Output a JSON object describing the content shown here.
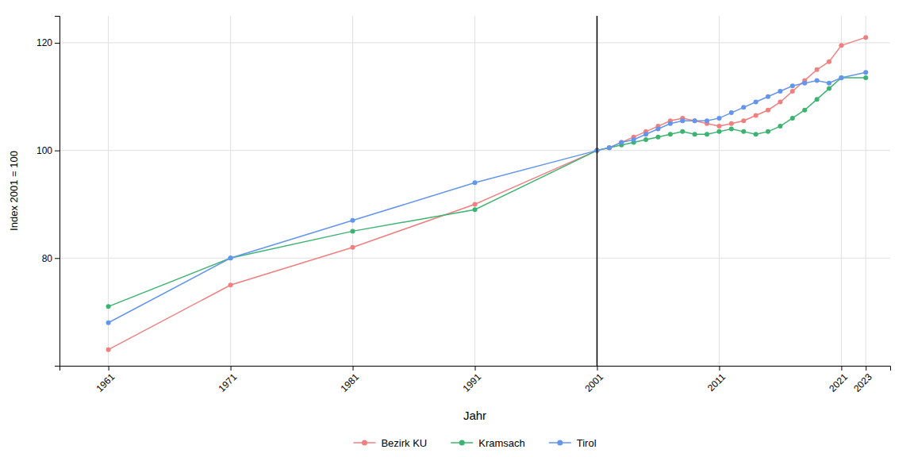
{
  "chart_data": {
    "type": "line",
    "xlabel": "Jahr",
    "ylabel": "Index 2001 = 100",
    "x": [
      1961,
      1971,
      1981,
      1991,
      2001,
      2002,
      2003,
      2004,
      2005,
      2006,
      2007,
      2008,
      2009,
      2010,
      2011,
      2012,
      2013,
      2014,
      2015,
      2016,
      2017,
      2018,
      2019,
      2020,
      2021,
      2023
    ],
    "series": [
      {
        "name": "Bezirk KU",
        "color": "#f08080",
        "marker": "circle",
        "values": [
          63.0,
          75.0,
          82.0,
          90.0,
          100.0,
          100.5,
          101.5,
          102.5,
          103.5,
          104.5,
          105.5,
          106.0,
          105.5,
          105.0,
          104.5,
          105.0,
          105.5,
          106.5,
          107.5,
          109.0,
          111.0,
          113.0,
          115.0,
          116.5,
          119.5,
          121.0
        ]
      },
      {
        "name": "Kramsach",
        "color": "#3cb371",
        "marker": "circle",
        "values": [
          71.0,
          80.0,
          85.0,
          89.0,
          100.0,
          100.5,
          101.0,
          101.5,
          102.0,
          102.5,
          103.0,
          103.5,
          103.0,
          103.0,
          103.5,
          104.0,
          103.5,
          103.0,
          103.5,
          104.5,
          106.0,
          107.5,
          109.5,
          111.5,
          113.5,
          113.5
        ]
      },
      {
        "name": "Tirol",
        "color": "#6495ed",
        "marker": "circle",
        "values": [
          68.0,
          80.0,
          87.0,
          94.0,
          100.0,
          100.5,
          101.5,
          102.0,
          103.0,
          104.0,
          105.0,
          105.5,
          105.5,
          105.5,
          106.0,
          107.0,
          108.0,
          109.0,
          110.0,
          111.0,
          112.0,
          112.5,
          113.0,
          112.5,
          113.5,
          114.5
        ]
      }
    ],
    "vline": 2001,
    "xlim": [
      1957,
      2025
    ],
    "xticks": [
      1961,
      1971,
      1981,
      1991,
      2001,
      2011,
      2021,
      2023
    ],
    "ylim": [
      60,
      125
    ],
    "yticks": [
      80,
      100,
      120
    ],
    "grid": true,
    "legend": "bottom"
  }
}
